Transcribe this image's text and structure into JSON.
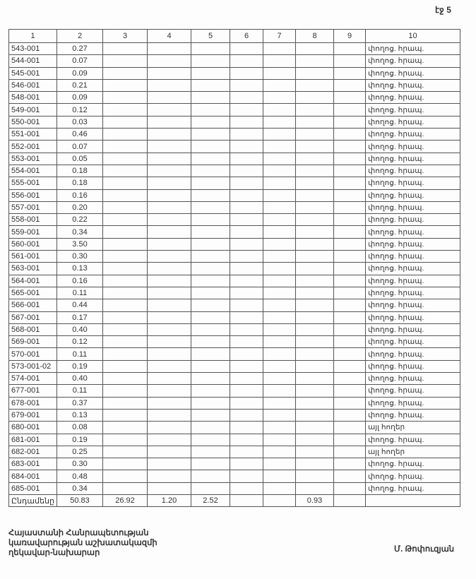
{
  "page_label": "էջ 5",
  "columns": [
    "1",
    "2",
    "3",
    "4",
    "5",
    "6",
    "7",
    "8",
    "9",
    "10"
  ],
  "rows": [
    {
      "code": "543-001",
      "area": "0.27",
      "use": "փողոց. հրապ."
    },
    {
      "code": "544-001",
      "area": "0.07",
      "use": "փողոց. հրապ."
    },
    {
      "code": "545-001",
      "area": "0.09",
      "use": "փողոց. հրապ."
    },
    {
      "code": "546-001",
      "area": "0.21",
      "use": "փողոց. հրապ."
    },
    {
      "code": "548-001",
      "area": "0.09",
      "use": "փողոց. հրապ."
    },
    {
      "code": "549-001",
      "area": "0.12",
      "use": "փողոց. հրապ."
    },
    {
      "code": "550-001",
      "area": "0.03",
      "use": "փողոց. հրապ."
    },
    {
      "code": "551-001",
      "area": "0.46",
      "use": "փողոց. հրապ."
    },
    {
      "code": "552-001",
      "area": "0.07",
      "use": "փողոց. հրապ."
    },
    {
      "code": "553-001",
      "area": "0.05",
      "use": "փողոց. հրապ."
    },
    {
      "code": "554-001",
      "area": "0.18",
      "use": "փողոց. հրապ."
    },
    {
      "code": "555-001",
      "area": "0.18",
      "use": "փողոց. հրապ."
    },
    {
      "code": "556-001",
      "area": "0.16",
      "use": "փողոց. հրապ."
    },
    {
      "code": "557-001",
      "area": "0.20",
      "use": "փողոց. հրապ."
    },
    {
      "code": "558-001",
      "area": "0.22",
      "use": "փողոց. հրապ."
    },
    {
      "code": "559-001",
      "area": "0.34",
      "use": "փողոց. հրապ."
    },
    {
      "code": "560-001",
      "area": "3.50",
      "use": "փողոց. հրապ."
    },
    {
      "code": "561-001",
      "area": "0.30",
      "use": "փողոց. հրապ."
    },
    {
      "code": "563-001",
      "area": "0.13",
      "use": "փողոց. հրապ."
    },
    {
      "code": "564-001",
      "area": "0.16",
      "use": "փողոց. հրապ."
    },
    {
      "code": "565-001",
      "area": "0.11",
      "use": "փողոց. հրապ."
    },
    {
      "code": "566-001",
      "area": "0.44",
      "use": "փողոց. հրապ."
    },
    {
      "code": "567-001",
      "area": "0.17",
      "use": "փողոց. հրապ."
    },
    {
      "code": "568-001",
      "area": "0.40",
      "use": "փողոց. հրապ."
    },
    {
      "code": "569-001",
      "area": "0.12",
      "use": "փողոց. հրապ."
    },
    {
      "code": "570-001",
      "area": "0.11",
      "use": "փողոց. հրապ."
    },
    {
      "code": "573-001-02",
      "area": "0.19",
      "use": "փողոց. հրապ."
    },
    {
      "code": "574-001",
      "area": "0.40",
      "use": "փողոց. հրապ."
    },
    {
      "code": "677-001",
      "area": "0.11",
      "use": "փողոց. հրապ."
    },
    {
      "code": "678-001",
      "area": "0.37",
      "use": "փողոց. հրապ."
    },
    {
      "code": "679-001",
      "area": "0.13",
      "use": "փողոց. հրապ."
    },
    {
      "code": "680-001",
      "area": "0.08",
      "use": "այլ հողեր"
    },
    {
      "code": "681-001",
      "area": "0.19",
      "use": "փողոց. հրապ."
    },
    {
      "code": "682-001",
      "area": "0.25",
      "use": "այլ հողեր"
    },
    {
      "code": "683-001",
      "area": "0.30",
      "use": "փողոց. հրապ."
    },
    {
      "code": "684-001",
      "area": "0.48",
      "use": "փողոց. հրապ."
    },
    {
      "code": "685-001",
      "area": "0.34",
      "use": "փողոց. հրապ."
    }
  ],
  "total": {
    "label": "Ընդամենը",
    "c2": "50.83",
    "c3": "26.92",
    "c4": "1.20",
    "c5": "2.52",
    "c6": "",
    "c7": "",
    "c8": "0.93",
    "c9": "",
    "c10": ""
  },
  "footer": {
    "position_lines": [
      "Հայաստանի Հանրապետության",
      "կառավարության աշխատակազմի",
      "ղեկավար-նախարար"
    ],
    "signatory": "Մ. Թոփուզյան"
  }
}
